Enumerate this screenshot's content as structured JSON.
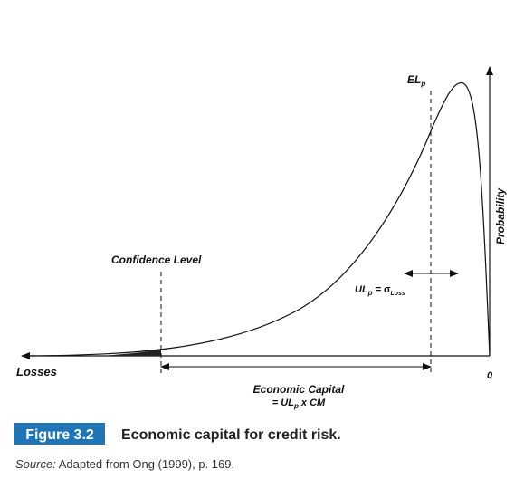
{
  "figure": {
    "labels": {
      "expected_loss": {
        "main": "EL",
        "sub": "p"
      },
      "probability": "Probability",
      "confidence_level": "Confidence Level",
      "unexpected_loss": {
        "main": "UL",
        "sub": "p",
        "eq": "=",
        "sigma": "σ",
        "sigma_sub": "Loss"
      },
      "losses": "Losses",
      "zero": "0",
      "economic_capital": {
        "line1": "Economic Capital",
        "line2_pre": "= UL",
        "line2_sub": "p",
        "line2_post": " x CM"
      }
    },
    "caption": {
      "number": "Figure 3.2",
      "title": "Economic capital for credit risk."
    },
    "source": {
      "prefix": "Source:",
      "text": " Adapted from Ong (1999), p. 169."
    }
  }
}
